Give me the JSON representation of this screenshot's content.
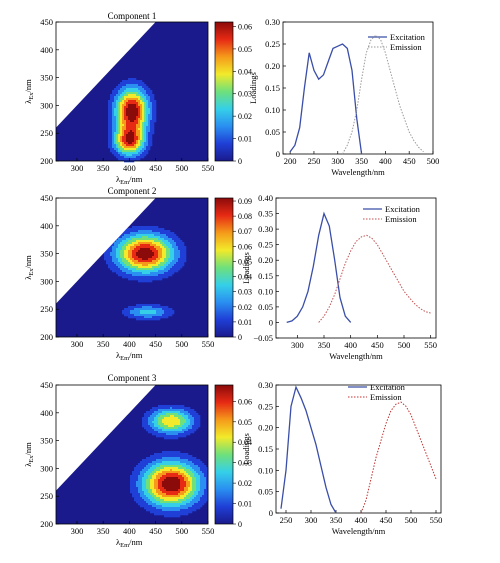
{
  "colorbar": {
    "stops": [
      "#1a1a8c",
      "#1f3fd6",
      "#2a8ff0",
      "#35d0e8",
      "#6fe07a",
      "#f2ea2a",
      "#f59a1a",
      "#e62a14",
      "#8b0a0a"
    ]
  },
  "line_colors": {
    "excitation": "#3a4ea8",
    "emission_1": "#999999",
    "emission_2": "#c05050",
    "emission_3": "#c03030"
  },
  "chart_data": [
    {
      "type": "heatmap",
      "title": "Component 1",
      "xlabel_main": "λ",
      "xlabel_sub": "Em",
      "xlabel_unit": "/nm",
      "ylabel_main": "λ",
      "ylabel_sub": "Ex",
      "ylabel_unit": "/nm",
      "xlim": [
        260,
        550
      ],
      "ylim": [
        200,
        450
      ],
      "xticks": [
        "300",
        "350",
        "400",
        "450",
        "500",
        "550"
      ],
      "xtick_values": [
        300,
        350,
        400,
        450,
        500,
        550
      ],
      "yticks": [
        "200",
        "250",
        "300",
        "350",
        "400",
        "450"
      ],
      "ytick_values": [
        200,
        250,
        300,
        350,
        400,
        450
      ],
      "colorbar_ticks": [
        "0",
        "0.01",
        "0.02",
        "0.03",
        "0.04",
        "0.05",
        "0.06"
      ],
      "colorbar_values": [
        0,
        0.01,
        0.02,
        0.03,
        0.04,
        0.05,
        0.06
      ],
      "colorbar_max": 0.062,
      "peaks": [
        {
          "em": 405,
          "ex": 290,
          "sx": 22,
          "sy": 28,
          "amp": 0.062
        },
        {
          "em": 400,
          "ex": 235,
          "sx": 20,
          "sy": 18,
          "amp": 0.05
        }
      ]
    },
    {
      "type": "line",
      "xlabel": "Wavelength/nm",
      "ylabel": "Loadings",
      "xlim": [
        185,
        500
      ],
      "ylim": [
        0,
        0.3
      ],
      "xticks": [
        "200",
        "250",
        "300",
        "350",
        "400",
        "450",
        "500"
      ],
      "xtick_values": [
        200,
        250,
        300,
        350,
        400,
        450,
        500
      ],
      "yticks": [
        "0",
        "0.05",
        "0.10",
        "0.15",
        "0.20",
        "0.25",
        "0.30"
      ],
      "ytick_values": [
        0,
        0.05,
        0.1,
        0.15,
        0.2,
        0.25,
        0.3
      ],
      "series": [
        {
          "name": "Excitation",
          "style": "solid",
          "x": [
            200,
            210,
            220,
            230,
            240,
            250,
            260,
            270,
            280,
            290,
            300,
            310,
            320,
            330,
            340,
            350
          ],
          "y": [
            0.005,
            0.02,
            0.06,
            0.15,
            0.23,
            0.19,
            0.17,
            0.18,
            0.21,
            0.24,
            0.245,
            0.25,
            0.24,
            0.19,
            0.08,
            0.0
          ]
        },
        {
          "name": "Emission",
          "style": "dotted",
          "x": [
            310,
            320,
            330,
            340,
            350,
            360,
            370,
            380,
            390,
            400,
            410,
            420,
            430,
            440,
            450,
            460,
            470,
            480
          ],
          "y": [
            0.0,
            0.02,
            0.05,
            0.1,
            0.17,
            0.23,
            0.26,
            0.27,
            0.26,
            0.23,
            0.19,
            0.15,
            0.11,
            0.08,
            0.05,
            0.03,
            0.015,
            0.005
          ]
        }
      ]
    },
    {
      "type": "heatmap",
      "title": "Component 2",
      "xlabel_main": "λ",
      "xlabel_sub": "Em",
      "xlabel_unit": "/nm",
      "ylabel_main": "λ",
      "ylabel_sub": "Ex",
      "ylabel_unit": "/nm",
      "xlim": [
        260,
        550
      ],
      "ylim": [
        200,
        450
      ],
      "xticks": [
        "300",
        "350",
        "400",
        "450",
        "500",
        "550"
      ],
      "xtick_values": [
        300,
        350,
        400,
        450,
        500,
        550
      ],
      "yticks": [
        "200",
        "250",
        "300",
        "350",
        "400",
        "450"
      ],
      "ytick_values": [
        200,
        250,
        300,
        350,
        400,
        450
      ],
      "colorbar_ticks": [
        "0",
        "0.01",
        "0.02",
        "0.03",
        "0.04",
        "0.05",
        "0.06",
        "0.07",
        "0.08",
        "0.09"
      ],
      "colorbar_values": [
        0,
        0.01,
        0.02,
        0.03,
        0.04,
        0.05,
        0.06,
        0.07,
        0.08,
        0.09
      ],
      "colorbar_max": 0.092,
      "peaks": [
        {
          "em": 430,
          "ex": 350,
          "sx": 38,
          "sy": 24,
          "amp": 0.09
        },
        {
          "em": 435,
          "ex": 245,
          "sx": 32,
          "sy": 9,
          "amp": 0.035
        }
      ]
    },
    {
      "type": "line",
      "xlabel": "Wavelength/nm",
      "ylabel": "Loadings",
      "xlim": [
        260,
        560
      ],
      "ylim": [
        -0.05,
        0.4
      ],
      "xticks": [
        "300",
        "350",
        "400",
        "450",
        "500",
        "550"
      ],
      "xtick_values": [
        300,
        350,
        400,
        450,
        500,
        550
      ],
      "yticks": [
        "−0.05",
        "0",
        "0.05",
        "0.10",
        "0.15",
        "0.20",
        "0.25",
        "0.30",
        "0.35",
        "0.40"
      ],
      "ytick_values": [
        -0.05,
        0,
        0.05,
        0.1,
        0.15,
        0.2,
        0.25,
        0.3,
        0.35,
        0.4
      ],
      "series": [
        {
          "name": "Excitation",
          "style": "solid",
          "x": [
            280,
            290,
            300,
            310,
            320,
            330,
            340,
            350,
            360,
            370,
            380,
            390,
            400
          ],
          "y": [
            0.0,
            0.005,
            0.02,
            0.05,
            0.1,
            0.18,
            0.28,
            0.35,
            0.31,
            0.2,
            0.08,
            0.02,
            0.0
          ]
        },
        {
          "name": "Emission",
          "style": "dotted",
          "x": [
            340,
            350,
            360,
            370,
            380,
            390,
            400,
            410,
            420,
            430,
            440,
            450,
            460,
            470,
            480,
            490,
            500,
            510,
            520,
            530,
            540,
            550
          ],
          "y": [
            0.0,
            0.02,
            0.05,
            0.09,
            0.14,
            0.19,
            0.23,
            0.26,
            0.275,
            0.28,
            0.27,
            0.25,
            0.22,
            0.19,
            0.16,
            0.13,
            0.1,
            0.08,
            0.06,
            0.045,
            0.035,
            0.03
          ]
        }
      ]
    },
    {
      "type": "heatmap",
      "title": "Component 3",
      "xlabel_main": "λ",
      "xlabel_sub": "Em",
      "xlabel_unit": "/nm",
      "ylabel_main": "λ",
      "ylabel_sub": "Ex",
      "ylabel_unit": "/nm",
      "xlim": [
        260,
        550
      ],
      "ylim": [
        200,
        450
      ],
      "xticks": [
        "300",
        "350",
        "400",
        "450",
        "500",
        "550"
      ],
      "xtick_values": [
        300,
        350,
        400,
        450,
        500,
        550
      ],
      "yticks": [
        "200",
        "250",
        "300",
        "350",
        "400",
        "450"
      ],
      "ytick_values": [
        200,
        250,
        300,
        350,
        400,
        450
      ],
      "colorbar_ticks": [
        "0",
        "0.01",
        "0.02",
        "0.03",
        "0.04",
        "0.05",
        "0.06"
      ],
      "colorbar_values": [
        0,
        0.01,
        0.02,
        0.03,
        0.04,
        0.05,
        0.06
      ],
      "colorbar_max": 0.068,
      "peaks": [
        {
          "em": 480,
          "ex": 272,
          "sx": 38,
          "sy": 28,
          "amp": 0.068
        },
        {
          "em": 480,
          "ex": 385,
          "sx": 30,
          "sy": 16,
          "amp": 0.045
        }
      ]
    },
    {
      "type": "line",
      "xlabel": "Wavelength/nm",
      "ylabel": "Loadings",
      "xlim": [
        230,
        560
      ],
      "ylim": [
        0,
        0.3
      ],
      "xticks": [
        "250",
        "300",
        "350",
        "400",
        "450",
        "500",
        "550"
      ],
      "xtick_values": [
        250,
        300,
        350,
        400,
        450,
        500,
        550
      ],
      "yticks": [
        "0",
        "0.05",
        "0.10",
        "0.15",
        "0.20",
        "0.25",
        "0.30"
      ],
      "ytick_values": [
        0,
        0.05,
        0.1,
        0.15,
        0.2,
        0.25,
        0.3
      ],
      "series": [
        {
          "name": "Excitation",
          "style": "solid",
          "x": [
            240,
            250,
            260,
            270,
            280,
            290,
            300,
            310,
            320,
            330,
            340,
            350
          ],
          "y": [
            0.01,
            0.1,
            0.25,
            0.295,
            0.27,
            0.24,
            0.2,
            0.16,
            0.11,
            0.06,
            0.02,
            0.0
          ]
        },
        {
          "name": "Emission",
          "style": "dotted",
          "x": [
            400,
            410,
            420,
            430,
            440,
            450,
            460,
            470,
            480,
            490,
            500,
            510,
            520,
            530,
            540,
            550
          ],
          "y": [
            0.0,
            0.03,
            0.08,
            0.13,
            0.17,
            0.21,
            0.24,
            0.255,
            0.26,
            0.25,
            0.23,
            0.2,
            0.17,
            0.14,
            0.11,
            0.08
          ]
        }
      ]
    }
  ]
}
